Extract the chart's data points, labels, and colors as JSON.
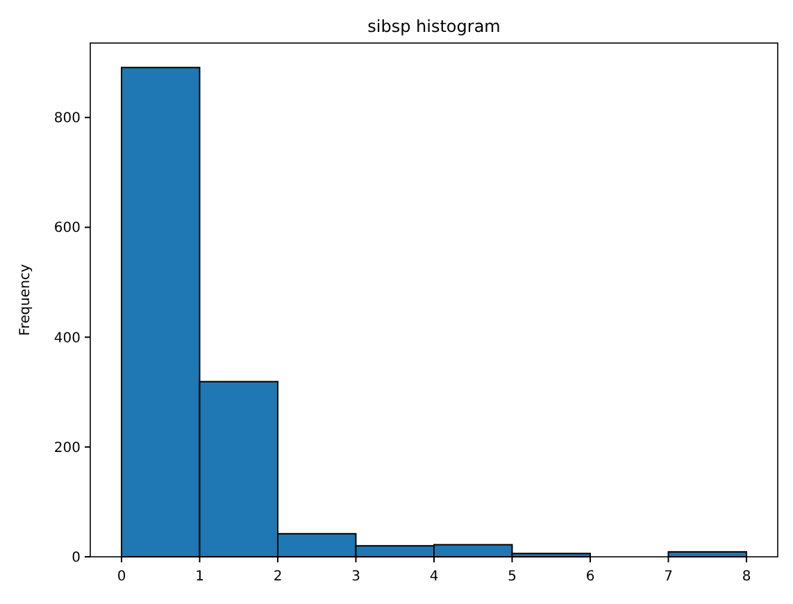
{
  "chart_data": {
    "type": "histogram",
    "title": "sibsp histogram",
    "ylabel": "Frequency",
    "bins": [
      0,
      1,
      2,
      3,
      4,
      5,
      6,
      7,
      8
    ],
    "values": [
      891,
      319,
      42,
      20,
      22,
      6,
      0,
      9
    ],
    "color": "#1f77b4",
    "xlim": [
      -0.4,
      8.4
    ],
    "xticks": [
      0,
      1,
      2,
      3,
      4,
      5,
      6,
      7,
      8
    ],
    "ylim": [
      0,
      935.6
    ],
    "yticks": [
      0,
      200,
      400,
      600,
      800
    ],
    "grid": false
  }
}
